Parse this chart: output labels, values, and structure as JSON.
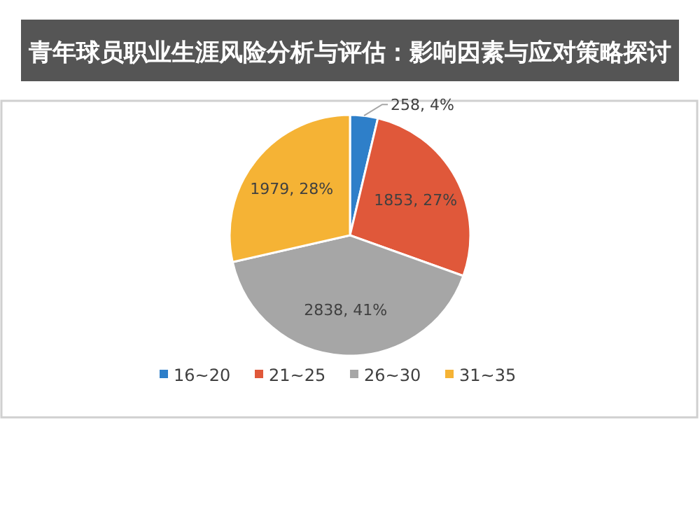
{
  "chart_data": {
    "type": "pie",
    "title": "青年球员职业生涯风险分析与评估：影响因素与应对策略探讨",
    "categories": [
      "16~20",
      "21~25",
      "26~30",
      "31~35"
    ],
    "values": [
      258,
      1853,
      2838,
      1979
    ],
    "colors": [
      "#2e7fc9",
      "#e0583a",
      "#a6a6a6",
      "#f5b335"
    ],
    "value_labels": [
      "258, 4%",
      "1853, 27%",
      "2838, 41%",
      "1979, 28%"
    ],
    "legend": "bottom"
  }
}
